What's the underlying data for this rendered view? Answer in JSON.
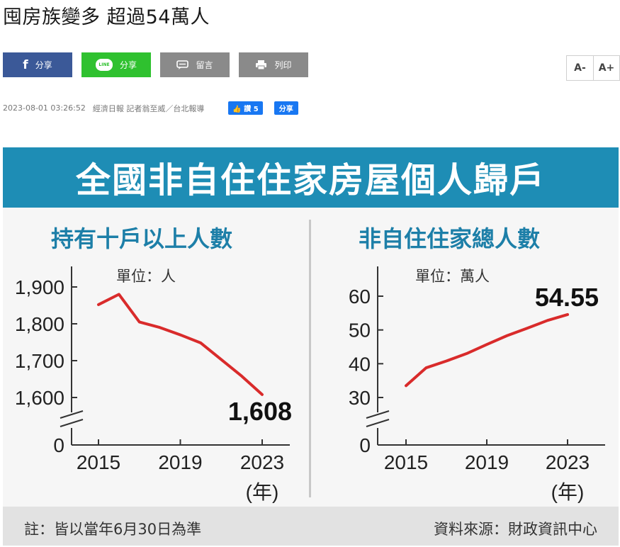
{
  "headline": "囤房族變多 超過54萬人",
  "share": {
    "facebook_label": "分享",
    "line_label": "分享",
    "line_badge": "LINE",
    "comment_label": "留言",
    "print_label": "列印"
  },
  "font_size": {
    "decrease": "A-",
    "increase": "A+"
  },
  "meta": {
    "datetime": "2023-08-01 03:26:52",
    "source": "經濟日報 記者翁至威／台北報導",
    "like_label": "讚 5",
    "fb_share_label": "分享"
  },
  "infographic": {
    "banner_title": "全國非自住住家房屋個人歸戶",
    "note": "註：皆以當年6月30日為準",
    "source": "資料來源：財政資訊中心"
  },
  "chart_data": [
    {
      "type": "line",
      "title": "持有十戶以上人數",
      "unit_label": "單位：人",
      "x": [
        2015,
        2016,
        2017,
        2018,
        2019,
        2020,
        2021,
        2022,
        2023
      ],
      "y": [
        1852,
        1880,
        1805,
        1790,
        1770,
        1748,
        1703,
        1658,
        1608
      ],
      "xticks": [
        "2015",
        "2019",
        "2023"
      ],
      "yticks": [
        "1,900",
        "1,800",
        "1,700",
        "1,600",
        "0"
      ],
      "ylim": [
        1600,
        1900
      ],
      "axis_break": true,
      "x_unit": "(年)",
      "last_value_label": "1,608",
      "line_color": "#d92b2b"
    },
    {
      "type": "line",
      "title": "非自住住家總人數",
      "unit_label": "單位：萬人",
      "x": [
        2015,
        2016,
        2017,
        2018,
        2019,
        2020,
        2021,
        2022,
        2023
      ],
      "y": [
        33.5,
        38.8,
        40.8,
        43.0,
        45.7,
        48.3,
        50.5,
        52.8,
        54.55
      ],
      "xticks": [
        "2015",
        "2019",
        "2023"
      ],
      "yticks": [
        "60",
        "50",
        "40",
        "30",
        "0"
      ],
      "ylim": [
        30,
        60
      ],
      "axis_break": true,
      "x_unit": "(年)",
      "last_value_label": "54.55",
      "line_color": "#d92b2b"
    }
  ]
}
